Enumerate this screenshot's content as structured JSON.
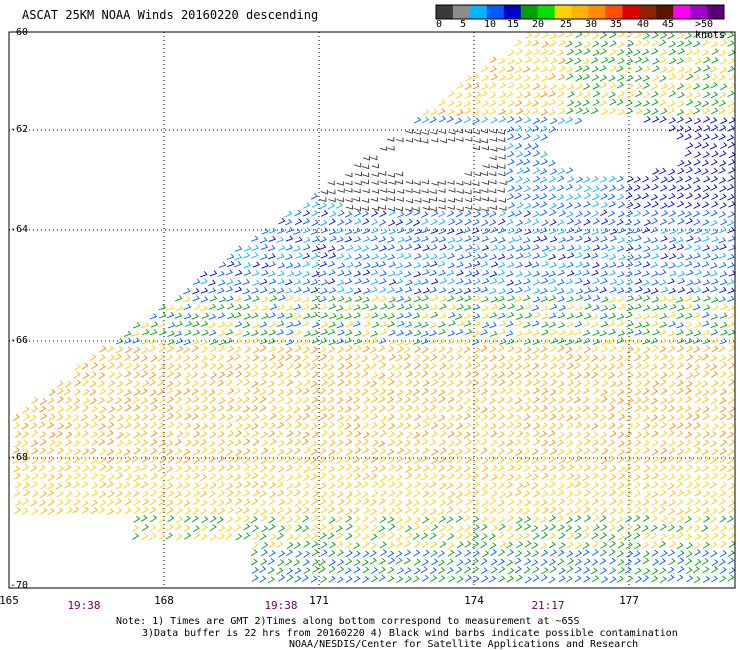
{
  "title": "ASCAT 25KM NOAA Winds 20160220 descending",
  "colorbar": {
    "colors": [
      "#3a3a3a",
      "#8c8c8c",
      "#00b4ff",
      "#005aff",
      "#0000c8",
      "#00a000",
      "#00e000",
      "#ffd200",
      "#ffb400",
      "#ff8c00",
      "#ff5000",
      "#e00000",
      "#8b2500",
      "#5a1400",
      "#ff00ff",
      "#a000c8",
      "#5a0078"
    ],
    "labels": [
      "0",
      "5",
      "10",
      "15",
      "20",
      "25",
      "30",
      "35",
      "40",
      "45",
      ">50 knots"
    ]
  },
  "axes": {
    "lat_labels": [
      "-60",
      "-62",
      "-64",
      "-66",
      "-68",
      "-70"
    ],
    "lon_labels": [
      "165",
      "168",
      "171",
      "174",
      "177"
    ]
  },
  "times": [
    "19:38",
    "19:38",
    "21:17"
  ],
  "notes": [
    "Note: 1) Times are GMT 2)Times along bottom correspond to measurement at ~65S",
    "3)Data buffer is 22 hrs from 20160220 4) Black wind barbs indicate possible contamination",
    "NOAA/NESDIS/Center for Satellite Applications and Research"
  ]
}
